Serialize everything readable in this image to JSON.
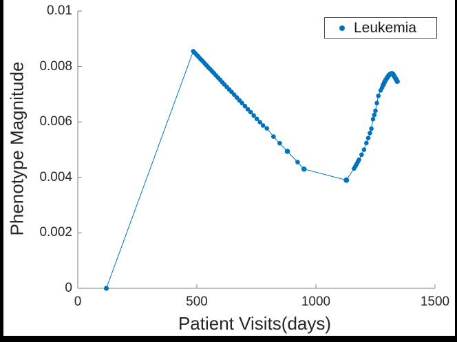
{
  "colors": {
    "accent": "#0072BD",
    "axis_line": "#7f7f7f",
    "tick_text": "#262626",
    "legend_border": "#4d4d4d",
    "figure_background": "#ffffff",
    "frame": "#000000"
  },
  "chart_data": {
    "type": "scatter",
    "title": "",
    "xlabel": "Patient Visits(days)",
    "ylabel": "Phenotype Magnitude",
    "xlim": [
      0,
      1500
    ],
    "ylim": [
      0,
      0.01
    ],
    "grid": false,
    "x_ticks": [
      0,
      500,
      1000,
      1500
    ],
    "x_tick_labels": [
      "0",
      "500",
      "1000",
      "1500"
    ],
    "y_ticks": [
      0,
      0.002,
      0.004,
      0.006,
      0.008,
      0.01
    ],
    "y_tick_labels": [
      "0",
      "0.002",
      "0.004",
      "0.006",
      "0.008",
      "0.01"
    ],
    "legend": {
      "position": "top-right",
      "entries": [
        {
          "label": "Leukemia",
          "marker": "dot",
          "color": "#0072BD"
        }
      ]
    },
    "series": [
      {
        "name": "Leukemia",
        "style": "line-with-markers",
        "color": "#0072BD",
        "marker_radius": 3.3,
        "points": [
          [
            120,
            0.0,
            3.6
          ],
          [
            485,
            0.00855
          ],
          [
            492,
            0.00849
          ],
          [
            499,
            0.00842
          ],
          [
            506,
            0.00836
          ],
          [
            513,
            0.00829
          ],
          [
            520,
            0.00823
          ],
          [
            527,
            0.00817
          ],
          [
            534,
            0.0081
          ],
          [
            541,
            0.00804
          ],
          [
            548,
            0.00797
          ],
          [
            556,
            0.0079
          ],
          [
            564,
            0.00783
          ],
          [
            572,
            0.00776
          ],
          [
            580,
            0.00768
          ],
          [
            589,
            0.0076
          ],
          [
            598,
            0.00752
          ],
          [
            607,
            0.00743
          ],
          [
            616,
            0.00735
          ],
          [
            626,
            0.00726
          ],
          [
            636,
            0.00717
          ],
          [
            646,
            0.00708
          ],
          [
            657,
            0.00698
          ],
          [
            668,
            0.00688
          ],
          [
            679,
            0.00678
          ],
          [
            690,
            0.00668
          ],
          [
            702,
            0.00657
          ],
          [
            714,
            0.00646
          ],
          [
            726,
            0.00635
          ],
          [
            739,
            0.00623
          ],
          [
            752,
            0.00611
          ],
          [
            765,
            0.00599
          ],
          [
            778,
            0.00587
          ],
          [
            794,
            0.00577
          ],
          [
            822,
            0.00547
          ],
          [
            848,
            0.00523
          ],
          [
            880,
            0.00494,
            3.8
          ],
          [
            923,
            0.00455
          ],
          [
            950,
            0.0043,
            3.8
          ],
          [
            1128,
            0.0039,
            4.0
          ],
          [
            1160,
            0.00432
          ],
          [
            1166,
            0.0044
          ],
          [
            1171,
            0.00448
          ],
          [
            1176,
            0.00456
          ],
          [
            1181,
            0.00464
          ],
          [
            1192,
            0.00482
          ],
          [
            1202,
            0.005
          ],
          [
            1212,
            0.00524
          ],
          [
            1220,
            0.00542
          ],
          [
            1227,
            0.0056
          ],
          [
            1233,
            0.00576
          ],
          [
            1240,
            0.0061
          ],
          [
            1245,
            0.00625
          ],
          [
            1250,
            0.0064
          ],
          [
            1256,
            0.00668
          ],
          [
            1262,
            0.00694
          ],
          [
            1272,
            0.00714
          ],
          [
            1278,
            0.00724
          ],
          [
            1283,
            0.00734,
            3.6
          ],
          [
            1288,
            0.00743,
            3.6
          ],
          [
            1293,
            0.00751,
            3.6
          ],
          [
            1298,
            0.00758,
            3.6
          ],
          [
            1303,
            0.00764,
            3.6
          ],
          [
            1307,
            0.00769,
            3.6
          ],
          [
            1311,
            0.00772,
            3.6
          ],
          [
            1315,
            0.00774,
            3.6
          ],
          [
            1319,
            0.00775,
            3.6
          ],
          [
            1323,
            0.00773,
            3.6
          ],
          [
            1327,
            0.00768,
            3.6
          ],
          [
            1331,
            0.00762,
            3.6
          ],
          [
            1335,
            0.00756,
            3.6
          ],
          [
            1339,
            0.0075,
            3.6
          ],
          [
            1342,
            0.00746,
            3.6
          ]
        ]
      }
    ]
  }
}
